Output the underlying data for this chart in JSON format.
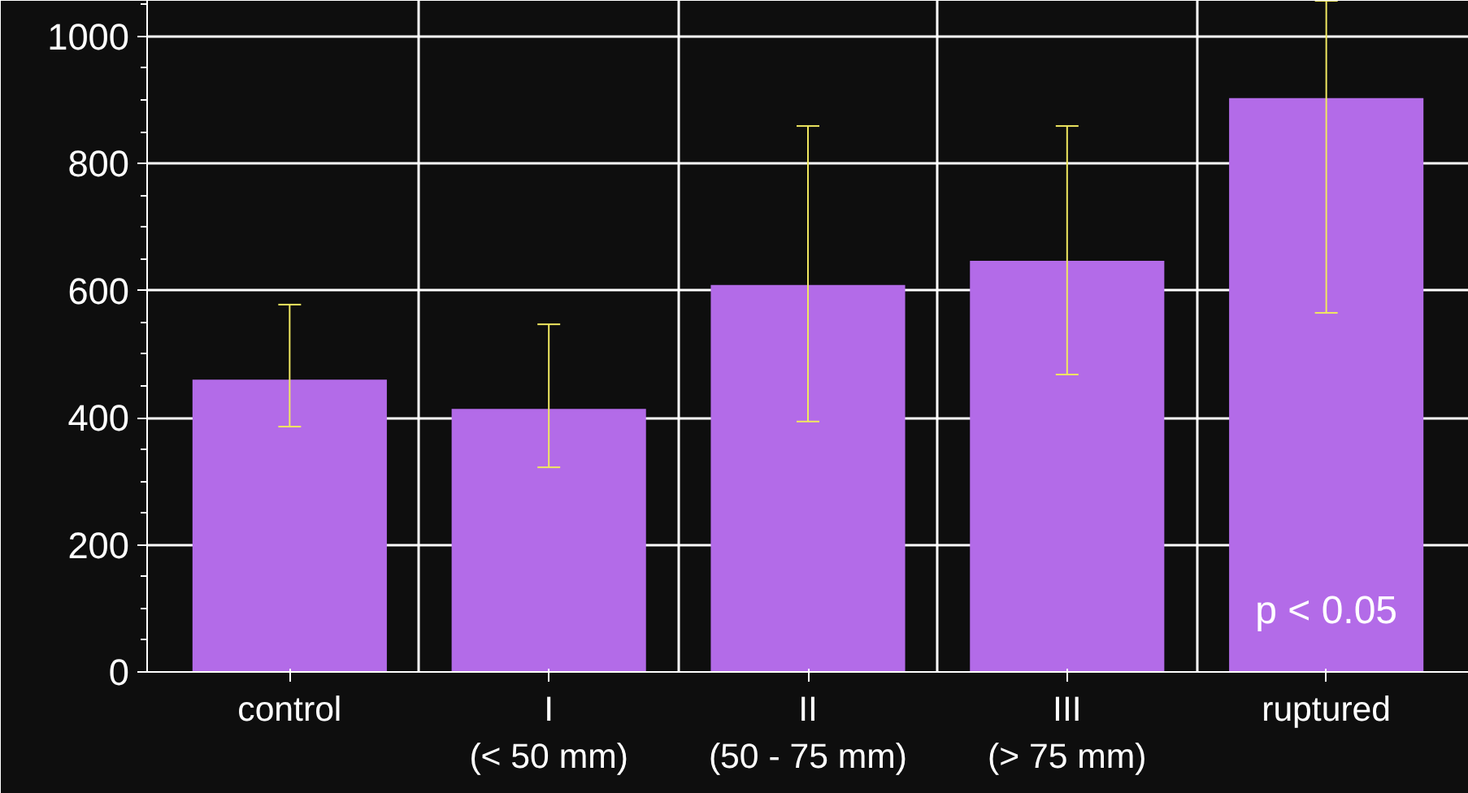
{
  "chart_data": {
    "type": "bar",
    "categories": [
      "control",
      "I\n(< 50 mm)",
      "II\n(50 - 75 mm)",
      "III\n(> 75 mm)",
      "ruptured"
    ],
    "values": [
      460,
      414,
      609,
      647,
      903
    ],
    "color": "#b36be8",
    "errors": [
      [
        386,
        578
      ],
      [
        322,
        547
      ],
      [
        394,
        859
      ],
      [
        468,
        859
      ],
      [
        565,
        1056
      ]
    ],
    "ylim": [
      0,
      1056
    ],
    "yticks": [
      0,
      200,
      400,
      600,
      800,
      1000
    ],
    "grid": true,
    "annotations": [
      "p < 0.05"
    ]
  }
}
